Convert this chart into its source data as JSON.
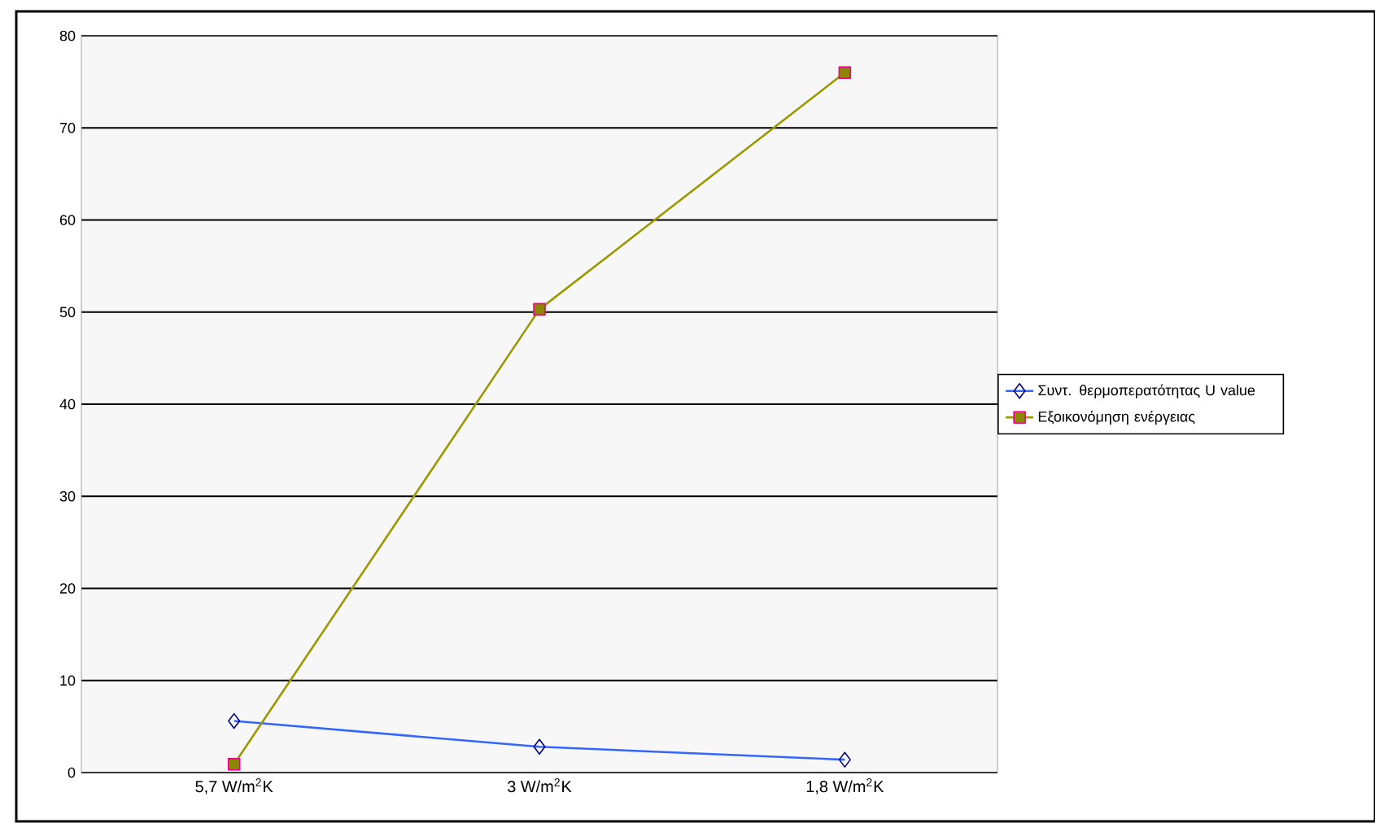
{
  "chart_data": {
    "type": "line",
    "categories": [
      "5,7 W/m$^{2}$K",
      "3 W/m$^{2}$K",
      "1,8 W/m$^{2}$K"
    ],
    "series": [
      {
        "name": "Συντ. θερμοπερατότητας U value",
        "color": "#3366ff",
        "marker": "diamond",
        "values": [
          5.6,
          2.8,
          1.4
        ]
      },
      {
        "name": "Εξοικονόμηση ενέργειας",
        "color": "#999900",
        "marker": "square",
        "values": [
          0.9,
          50.3,
          76
        ]
      }
    ],
    "ylim": [
      0,
      80
    ],
    "yticks": [
      0,
      10,
      20,
      30,
      40,
      50,
      60,
      70,
      80
    ],
    "grid": "y",
    "legend": "right"
  }
}
